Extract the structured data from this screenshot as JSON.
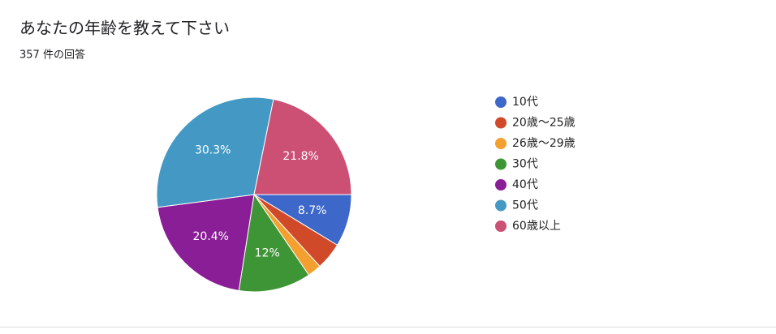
{
  "chart_data": {
    "type": "pie",
    "title": "あなたの年齢を教えて下さい",
    "subtitle": "357 件の回答",
    "categories": [
      "10代",
      "20歳〜25歳",
      "26歳〜29歳",
      "30代",
      "40代",
      "50代",
      "60歳以上"
    ],
    "values": [
      8.7,
      4.5,
      2.3,
      12,
      20.4,
      30.3,
      21.8
    ],
    "value_labels": [
      "8.7%",
      null,
      null,
      "12%",
      "20.4%",
      "30.3%",
      "21.8%"
    ],
    "colors": [
      "#3d67c8",
      "#d04a2a",
      "#f4a030",
      "#3e9536",
      "#8a1e96",
      "#4499c4",
      "#cc4f74"
    ],
    "legend": "right"
  }
}
